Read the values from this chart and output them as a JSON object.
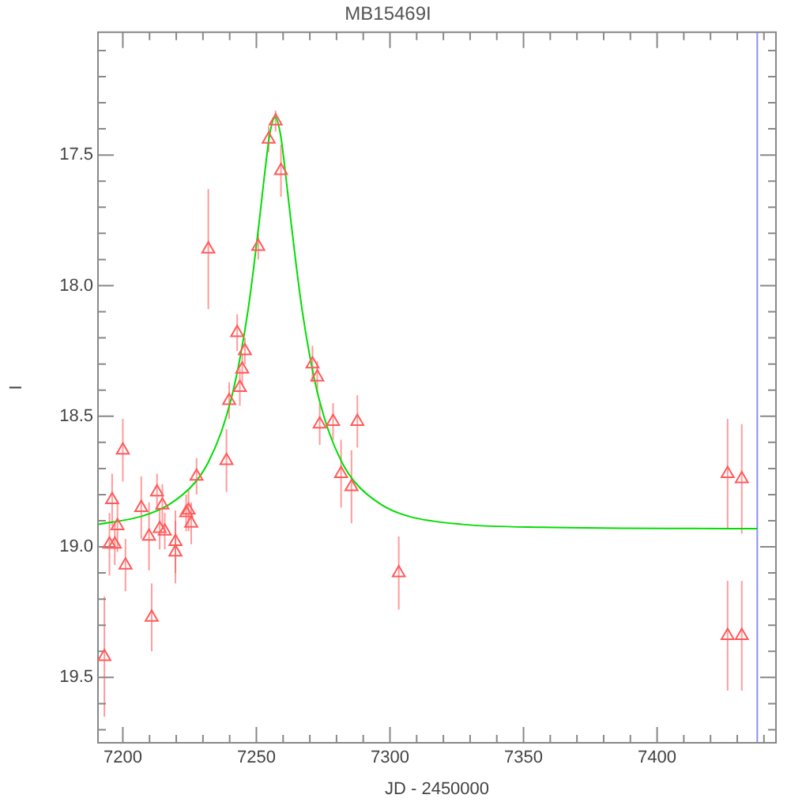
{
  "chart_data": {
    "type": "scatter",
    "title": "MB15469I",
    "xlabel": "JD - 2450000",
    "ylabel": "I",
    "xlim": [
      7190.7,
      7444.5
    ],
    "ylim": [
      19.75,
      17.03
    ],
    "xticks": [
      7200,
      {
        "value": 7210,
        "label": null
      },
      {
        "value": 7220,
        "label": null
      },
      {
        "value": 7230,
        "label": null
      },
      {
        "value": 7240,
        "label": null
      },
      7250,
      {
        "value": 7260,
        "label": null
      },
      {
        "value": 7270,
        "label": null
      },
      {
        "value": 7280,
        "label": null
      },
      {
        "value": 7290,
        "label": null
      },
      7300,
      {
        "value": 7310,
        "label": null
      },
      {
        "value": 7320,
        "label": null
      },
      {
        "value": 7330,
        "label": null
      },
      {
        "value": 7340,
        "label": null
      },
      7350,
      {
        "value": 7360,
        "label": null
      },
      {
        "value": 7370,
        "label": null
      },
      {
        "value": 7380,
        "label": null
      },
      {
        "value": 7390,
        "label": null
      },
      7400,
      {
        "value": 7410,
        "label": null
      },
      {
        "value": 7420,
        "label": null
      },
      {
        "value": 7430,
        "label": null
      },
      {
        "value": 7440,
        "label": null
      }
    ],
    "yticks": [
      {
        "value": 17.1,
        "label": null
      },
      {
        "value": 17.2,
        "label": null
      },
      {
        "value": 17.3,
        "label": null
      },
      {
        "value": 17.4,
        "label": null
      },
      17.5,
      {
        "value": 17.6,
        "label": null
      },
      {
        "value": 17.7,
        "label": null
      },
      {
        "value": 17.8,
        "label": null
      },
      {
        "value": 17.9,
        "label": null
      },
      {
        "value": 18,
        "label": "18.0"
      },
      {
        "value": 18.1,
        "label": null
      },
      {
        "value": 18.2,
        "label": null
      },
      {
        "value": 18.3,
        "label": null
      },
      {
        "value": 18.4,
        "label": null
      },
      18.5,
      {
        "value": 18.6,
        "label": null
      },
      {
        "value": 18.7,
        "label": null
      },
      {
        "value": 18.8,
        "label": null
      },
      {
        "value": 18.9,
        "label": null
      },
      {
        "value": 19,
        "label": "19.0"
      },
      {
        "value": 19.1,
        "label": null
      },
      {
        "value": 19.2,
        "label": null
      },
      {
        "value": 19.3,
        "label": null
      },
      {
        "value": 19.4,
        "label": null
      },
      19.5,
      {
        "value": 19.6,
        "label": null
      },
      {
        "value": 19.7,
        "label": null
      }
    ],
    "grid": false,
    "legend": false,
    "marker": "triangle",
    "series": [
      {
        "type": "scatter",
        "color": "#ff5a5a",
        "x": [
          7193.1,
          7195.0,
          7196.0,
          7197.0,
          7198.0,
          7200.0,
          7201.0,
          7206.9,
          7209.8,
          7210.8,
          7212.8,
          7213.8,
          7214.8,
          7215.7,
          7219.7,
          7219.7,
          7223.7,
          7224.6,
          7225.6,
          7227.6,
          7232.0,
          7238.8,
          7239.8,
          7242.8,
          7243.8,
          7244.7,
          7245.7,
          7250.7,
          7254.6,
          7257.2,
          7259.2,
          7271.0,
          7272.8,
          7273.7,
          7278.7,
          7281.7,
          7285.6,
          7287.8,
          7303.3,
          7426.4,
          7426.4,
          7431.7,
          7431.7
        ],
        "values": [
          19.42,
          18.99,
          18.82,
          18.99,
          18.92,
          18.63,
          19.07,
          18.85,
          18.96,
          19.27,
          18.79,
          18.93,
          18.84,
          18.94,
          18.98,
          19.02,
          18.87,
          18.86,
          18.91,
          18.73,
          17.86,
          18.67,
          18.44,
          18.18,
          18.39,
          18.32,
          18.25,
          17.85,
          17.44,
          17.37,
          17.56,
          18.3,
          18.35,
          18.53,
          18.52,
          18.72,
          18.77,
          18.52,
          19.1,
          18.72,
          19.34,
          18.74,
          19.34
        ],
        "errors": [
          0.23,
          0.12,
          0.1,
          0.08,
          0.1,
          0.12,
          0.1,
          0.12,
          0.13,
          0.13,
          0.07,
          0.08,
          0.08,
          0.07,
          0.12,
          0.12,
          0.07,
          0.08,
          0.08,
          0.07,
          0.23,
          0.12,
          0.07,
          0.07,
          0.07,
          0.06,
          0.05,
          0.05,
          0.05,
          0.04,
          0.1,
          0.07,
          0.06,
          0.08,
          0.07,
          0.13,
          0.14,
          0.1,
          0.14,
          0.21,
          0.21,
          0.21,
          0.21
        ]
      },
      {
        "type": "line",
        "color": "#00dd00",
        "marker": "none",
        "x": [
          7190.7,
          7207,
          7217,
          7227,
          7232,
          7237,
          7241,
          7244,
          7247,
          7249,
          7251,
          7253,
          7255,
          7257,
          7259,
          7261,
          7263,
          7265,
          7267,
          7270,
          7273,
          7277,
          7282,
          7287,
          7297,
          7307,
          7327,
          7357,
          7437.5
        ],
        "values": [
          18.914,
          18.883,
          18.84,
          18.754,
          18.676,
          18.556,
          18.415,
          18.27,
          18.085,
          17.93,
          17.76,
          17.58,
          17.42,
          17.356,
          17.42,
          17.58,
          17.76,
          17.93,
          18.085,
          18.27,
          18.415,
          18.556,
          18.676,
          18.754,
          18.84,
          18.883,
          18.914,
          18.925,
          18.93
        ]
      }
    ],
    "ref_lines": [
      {
        "axis": "x",
        "value": 7437.5,
        "color": "#8c8cff"
      }
    ]
  }
}
